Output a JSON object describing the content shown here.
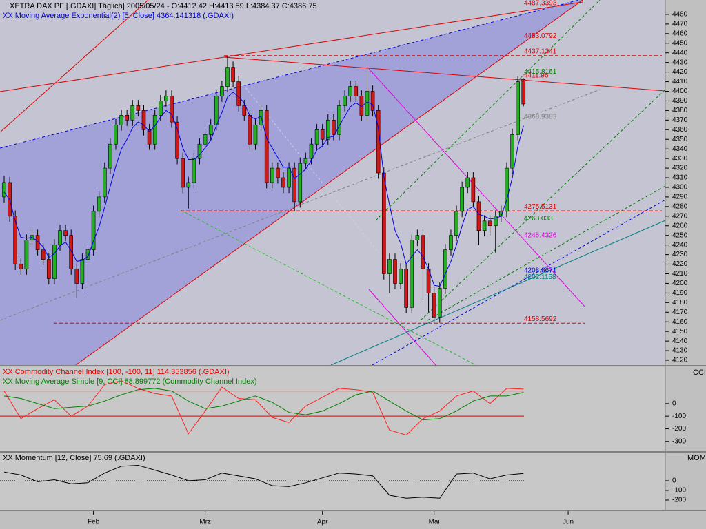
{
  "chart_data": [
    {
      "type": "candlestick",
      "title": "XETRA DAX PF [.GDAXI]  Täglich] 2005/05/24 - O:4412.42 H:4413.59 L:4384.37 C:4386.75",
      "up_color": "#22b022",
      "down_color": "#d01818",
      "xlim": [
        -0.74,
        118.4
      ],
      "xticks": [
        {
          "value": 16,
          "label": "Feb"
        },
        {
          "value": 36,
          "label": "Mrz"
        },
        {
          "value": 57,
          "label": "Apr"
        },
        {
          "value": 77,
          "label": "Mai"
        },
        {
          "value": 101,
          "label": "Jun"
        }
      ],
      "ylim": [
        4115,
        4495
      ],
      "yticks": [
        4120,
        4130,
        4140,
        4150,
        4160,
        4170,
        4180,
        4190,
        4200,
        4210,
        4220,
        4230,
        4240,
        4250,
        4260,
        4270,
        4280,
        4290,
        4300,
        4310,
        4320,
        4330,
        4340,
        4350,
        4360,
        4370,
        4380,
        4390,
        4400,
        4410,
        4420,
        4430,
        4440,
        4450,
        4460,
        4470,
        4480
      ],
      "ohlc": [
        [
          4290,
          4312,
          4284,
          4305
        ],
        [
          4305,
          4311,
          4264,
          4270
        ],
        [
          4270,
          4276,
          4214,
          4220
        ],
        [
          4220,
          4226,
          4209,
          4215
        ],
        [
          4215,
          4251,
          4209,
          4245
        ],
        [
          4245,
          4256,
          4239,
          4250
        ],
        [
          4250,
          4256,
          4229,
          4235
        ],
        [
          4235,
          4241,
          4219,
          4225
        ],
        [
          4225,
          4231,
          4199,
          4205
        ],
        [
          4205,
          4246,
          4199,
          4240
        ],
        [
          4240,
          4261,
          4234,
          4255
        ],
        [
          4255,
          4261,
          4244,
          4250
        ],
        [
          4250,
          4256,
          4209,
          4215
        ],
        [
          4215,
          4221,
          4185,
          4200
        ],
        [
          4200,
          4231,
          4194,
          4225
        ],
        [
          4225,
          4241,
          4190,
          4235
        ],
        [
          4235,
          4281,
          4229,
          4275
        ],
        [
          4275,
          4296,
          4269,
          4290
        ],
        [
          4290,
          4326,
          4284,
          4320
        ],
        [
          4320,
          4351,
          4314,
          4345
        ],
        [
          4345,
          4371,
          4339,
          4365
        ],
        [
          4365,
          4381,
          4359,
          4375
        ],
        [
          4375,
          4381,
          4364,
          4370
        ],
        [
          4370,
          4391,
          4364,
          4385
        ],
        [
          4385,
          4391,
          4374,
          4380
        ],
        [
          4380,
          4386,
          4354,
          4360
        ],
        [
          4360,
          4366,
          4339,
          4345
        ],
        [
          4345,
          4381,
          4339,
          4375
        ],
        [
          4375,
          4396,
          4369,
          4390
        ],
        [
          4390,
          4401,
          4384,
          4395
        ],
        [
          4395,
          4401,
          4362,
          4368
        ],
        [
          4368,
          4374,
          4324,
          4330
        ],
        [
          4330,
          4336,
          4294,
          4300
        ],
        [
          4300,
          4311,
          4278,
          4305
        ],
        [
          4305,
          4336,
          4299,
          4330
        ],
        [
          4330,
          4351,
          4324,
          4345
        ],
        [
          4345,
          4361,
          4339,
          4355
        ],
        [
          4355,
          4371,
          4349,
          4365
        ],
        [
          4365,
          4401,
          4359,
          4395
        ],
        [
          4395,
          4411,
          4389,
          4405
        ],
        [
          4405,
          4436,
          4399,
          4425
        ],
        [
          4425,
          4431,
          4404,
          4410
        ],
        [
          4410,
          4416,
          4379,
          4385
        ],
        [
          4385,
          4391,
          4369,
          4375
        ],
        [
          4375,
          4381,
          4339,
          4345
        ],
        [
          4345,
          4371,
          4339,
          4365
        ],
        [
          4365,
          4386,
          4359,
          4380
        ],
        [
          4380,
          4386,
          4299,
          4305
        ],
        [
          4305,
          4326,
          4299,
          4320
        ],
        [
          4320,
          4326,
          4304,
          4310
        ],
        [
          4310,
          4316,
          4294,
          4300
        ],
        [
          4300,
          4326,
          4294,
          4320
        ],
        [
          4320,
          4326,
          4275,
          4285
        ],
        [
          4285,
          4331,
          4279,
          4325
        ],
        [
          4325,
          4336,
          4319,
          4330
        ],
        [
          4330,
          4351,
          4324,
          4345
        ],
        [
          4345,
          4366,
          4339,
          4360
        ],
        [
          4360,
          4366,
          4344,
          4350
        ],
        [
          4350,
          4376,
          4344,
          4370
        ],
        [
          4370,
          4376,
          4349,
          4355
        ],
        [
          4355,
          4391,
          4349,
          4385
        ],
        [
          4385,
          4401,
          4379,
          4395
        ],
        [
          4395,
          4411,
          4389,
          4405
        ],
        [
          4405,
          4411,
          4389,
          4395
        ],
        [
          4395,
          4401,
          4369,
          4375
        ],
        [
          4375,
          4423,
          4369,
          4400
        ],
        [
          4400,
          4406,
          4374,
          4380
        ],
        [
          4380,
          4386,
          4309,
          4315
        ],
        [
          4315,
          4321,
          4204,
          4210
        ],
        [
          4210,
          4231,
          4190,
          4225
        ],
        [
          4225,
          4231,
          4194,
          4200
        ],
        [
          4200,
          4221,
          4194,
          4215
        ],
        [
          4215,
          4221,
          4169,
          4175
        ],
        [
          4175,
          4251,
          4169,
          4245
        ],
        [
          4245,
          4256,
          4239,
          4250
        ],
        [
          4250,
          4256,
          4180,
          4215
        ],
        [
          4215,
          4221,
          4170,
          4190
        ],
        [
          4190,
          4196,
          4159,
          4165
        ],
        [
          4165,
          4201,
          4159,
          4195
        ],
        [
          4195,
          4241,
          4189,
          4235
        ],
        [
          4235,
          4256,
          4229,
          4250
        ],
        [
          4250,
          4281,
          4244,
          4275
        ],
        [
          4275,
          4306,
          4269,
          4300
        ],
        [
          4300,
          4316,
          4294,
          4310
        ],
        [
          4310,
          4316,
          4279,
          4285
        ],
        [
          4285,
          4291,
          4240,
          4255
        ],
        [
          4255,
          4271,
          4249,
          4265
        ],
        [
          4265,
          4271,
          4250,
          4260
        ],
        [
          4260,
          4276,
          4232,
          4270
        ],
        [
          4270,
          4281,
          4264,
          4275
        ],
        [
          4275,
          4326,
          4269,
          4320
        ],
        [
          4320,
          4361,
          4314,
          4355
        ],
        [
          4355,
          4416,
          4349,
          4410
        ],
        [
          4412.42,
          4413.59,
          4384.37,
          4386.75
        ]
      ],
      "series": [
        {
          "name": "XX Moving Average Exponential(2) [5, Close] 4364.141318 (.GDAXI)",
          "color": "#0000e0",
          "values": [
            4295,
            4287,
            4265,
            4248,
            4247,
            4248,
            4244,
            4238,
            4227,
            4231,
            4239,
            4243,
            4234,
            4223,
            4224,
            4228,
            4244,
            4259,
            4279,
            4301,
            4322,
            4340,
            4350,
            4362,
            4368,
            4365,
            4358,
            4364,
            4373,
            4380,
            4376,
            4361,
            4341,
            4329,
            4329,
            4334,
            4341,
            4349,
            4364,
            4378,
            4394,
            4399,
            4394,
            4388,
            4374,
            4371,
            4374,
            4351,
            4341,
            4331,
            4321,
            4321,
            4309,
            4314,
            4319,
            4328,
            4339,
            4343,
            4352,
            4353,
            4364,
            4374,
            4384,
            4388,
            4384,
            4389,
            4386,
            4362,
            4311,
            4282,
            4255,
            4242,
            4220,
            4228,
            4235,
            4228,
            4215,
            4198,
            4197,
            4210,
            4223,
            4240,
            4260,
            4277,
            4280,
            4272,
            4270,
            4267,
            4268,
            4270,
            4287,
            4310,
            4343,
            4364.14
          ]
        }
      ],
      "levels": [
        {
          "value": 4487.3393,
          "color": "#e00000"
        },
        {
          "value": 4453.0792,
          "color": "#e00000"
        },
        {
          "value": 4437.1341,
          "color": "#e00000"
        },
        {
          "value": 4411.96,
          "color": "#e00000"
        },
        {
          "value": 4415.8161,
          "color": "#008000"
        },
        {
          "value": 4368.9383,
          "color": "#808080"
        },
        {
          "value": 4275.5131,
          "color": "#e00000"
        },
        {
          "value": 4263.033,
          "color": "#008000"
        },
        {
          "value": 4245.4326,
          "color": "#e000e0"
        },
        {
          "value": 4208.8671,
          "color": "#0000e0"
        },
        {
          "value": 4202.1158,
          "color": "#008080"
        },
        {
          "value": 4158.5692,
          "color": "#e00000"
        }
      ]
    },
    {
      "type": "line",
      "axis_label": "CCI",
      "x": [
        0,
        3,
        6,
        9,
        12,
        15,
        18,
        21,
        24,
        27,
        30,
        33,
        36,
        39,
        42,
        45,
        48,
        51,
        54,
        57,
        60,
        63,
        66,
        69,
        72,
        75,
        78,
        81,
        84,
        87,
        90,
        93
      ],
      "ylim": [
        -378,
        289
      ],
      "yticks": [
        -300,
        -200,
        -100,
        0
      ],
      "levels": [
        100,
        -100
      ],
      "level_color": "#e00000",
      "series": [
        {
          "name": "XX Commodity Channel Index [100, -100, 11] 114.353856 (.GDAXI)",
          "color": "#ff2020",
          "values": [
            100,
            -120,
            -40,
            30,
            -100,
            -20,
            150,
            180,
            120,
            80,
            60,
            -240,
            -60,
            130,
            40,
            30,
            -110,
            -150,
            -20,
            50,
            120,
            110,
            90,
            -210,
            -250,
            -120,
            -60,
            60,
            100,
            0,
            120,
            114.35
          ]
        },
        {
          "name": "XX Moving Average Simple [9, CCI] 88.899772 (Commodity Channel Index)",
          "color": "#008000",
          "values": [
            60,
            40,
            0,
            -40,
            -30,
            -20,
            20,
            70,
            110,
            120,
            100,
            20,
            -40,
            -20,
            20,
            60,
            10,
            -70,
            -90,
            -60,
            0,
            70,
            100,
            20,
            -60,
            -130,
            -120,
            -60,
            20,
            60,
            60,
            88.9
          ]
        }
      ]
    },
    {
      "type": "line",
      "axis_label": "MOM",
      "x": [
        0,
        3,
        6,
        9,
        12,
        15,
        18,
        21,
        24,
        27,
        30,
        33,
        36,
        39,
        42,
        45,
        48,
        51,
        54,
        57,
        60,
        63,
        66,
        69,
        72,
        75,
        78,
        81,
        84,
        87,
        90,
        93
      ],
      "ylim": [
        -300,
        285
      ],
      "yticks": [
        -200,
        -100,
        0
      ],
      "baseline": 0,
      "series": [
        {
          "name": "XX Momentum [12, Close] 75.69 (.GDAXI)",
          "color": "#000000",
          "values": [
            90,
            60,
            -10,
            10,
            -30,
            -20,
            80,
            150,
            160,
            110,
            60,
            0,
            10,
            80,
            50,
            20,
            -50,
            -60,
            -20,
            30,
            80,
            70,
            50,
            -150,
            -180,
            -170,
            -180,
            70,
            80,
            20,
            60,
            75.69
          ]
        }
      ]
    }
  ]
}
